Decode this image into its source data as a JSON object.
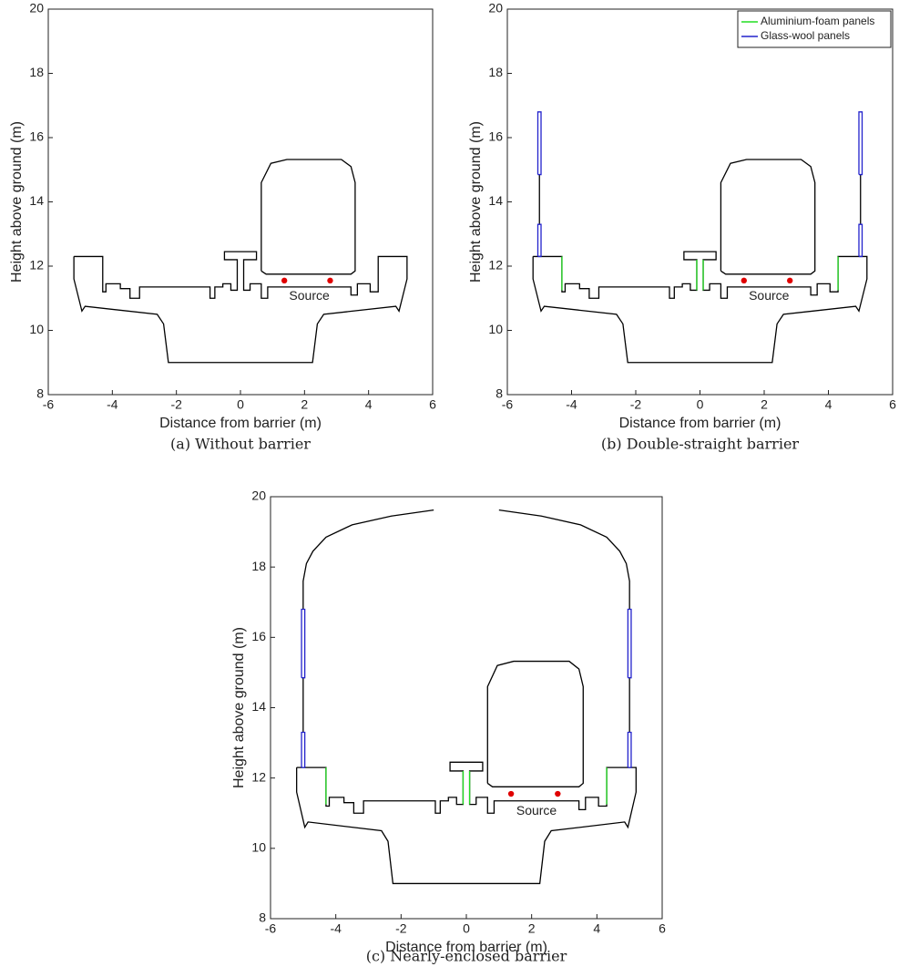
{
  "chart_data": [
    {
      "type": "line",
      "caption": "(a) Without barrier",
      "xlabel": "Distance from barrier (m)",
      "ylabel": "Height above ground (m)",
      "xlim": [
        -6,
        6
      ],
      "ylim": [
        8,
        20
      ],
      "xticks": [
        -6,
        -4,
        -2,
        0,
        2,
        4,
        6
      ],
      "yticks": [
        8,
        10,
        12,
        14,
        16,
        18,
        20
      ],
      "annotations": [
        {
          "text": "Source",
          "x": 2.15,
          "y": 11.05
        }
      ],
      "series": [
        {
          "color": "#000000",
          "x": [
            -5.2,
            -4.3,
            -4.3,
            -4.2,
            -4.2,
            -3.75,
            -3.75,
            -3.45,
            -3.45,
            -3.15,
            -3.15,
            -0.95,
            -0.95,
            -0.8,
            -0.8,
            -0.55,
            -0.55,
            -0.3,
            -0.3,
            -0.1,
            -0.1,
            -0.5,
            -0.5,
            0.5,
            0.5,
            0.1,
            0.1,
            0.3,
            0.3,
            0.65,
            0.65,
            0.85,
            0.85,
            3.45,
            3.45,
            3.65,
            3.65,
            4.05,
            4.05,
            4.3,
            4.3,
            5.2,
            5.2,
            4.95,
            4.85,
            2.6,
            2.4,
            2.25,
            -2.25,
            -2.4,
            -2.6,
            -4.85,
            -4.95,
            -5.2,
            -5.2
          ],
          "values": [
            12.3,
            12.3,
            11.2,
            11.2,
            11.45,
            11.45,
            11.3,
            11.3,
            11.0,
            11.0,
            11.35,
            11.35,
            11.0,
            11.0,
            11.35,
            11.35,
            11.45,
            11.45,
            11.25,
            11.25,
            12.2,
            12.2,
            12.45,
            12.45,
            12.2,
            12.2,
            11.25,
            11.25,
            11.45,
            11.45,
            11.0,
            11.0,
            11.35,
            11.35,
            11.1,
            11.1,
            11.45,
            11.45,
            11.2,
            11.2,
            12.3,
            12.3,
            11.6,
            10.6,
            10.75,
            10.5,
            10.2,
            9.0,
            9.0,
            10.2,
            10.5,
            10.75,
            10.6,
            11.6,
            12.3
          ]
        },
        {
          "color": "#000000",
          "x": [
            0.65,
            0.65,
            0.95,
            1.45,
            3.15,
            3.45,
            3.58,
            3.58,
            3.45,
            0.8,
            0.65
          ],
          "values": [
            11.85,
            14.6,
            15.2,
            15.32,
            15.32,
            15.1,
            14.6,
            11.85,
            11.75,
            11.75,
            11.85
          ]
        },
        {
          "color": "#e00000",
          "marker": "dot",
          "x": [
            1.37,
            2.8
          ],
          "values": [
            11.55,
            11.55
          ]
        }
      ]
    },
    {
      "type": "line",
      "caption": "(b) Double-straight barrier",
      "xlabel": "Distance from barrier (m)",
      "ylabel": "Height above ground (m)",
      "xlim": [
        -6,
        6
      ],
      "ylim": [
        8,
        20
      ],
      "xticks": [
        -6,
        -4,
        -2,
        0,
        2,
        4,
        6
      ],
      "yticks": [
        8,
        10,
        12,
        14,
        16,
        18,
        20
      ],
      "legend": "northeast",
      "annotations": [
        {
          "text": "Source",
          "x": 2.15,
          "y": 11.05
        }
      ],
      "series": [
        {
          "color": "#000000",
          "x": [
            -5.2,
            -4.3,
            -4.3,
            -4.2,
            -4.2,
            -3.75,
            -3.75,
            -3.45,
            -3.45,
            -3.15,
            -3.15,
            -0.95,
            -0.95,
            -0.8,
            -0.8,
            -0.55,
            -0.55,
            -0.3,
            -0.3,
            -0.1,
            -0.1,
            -0.5,
            -0.5,
            0.5,
            0.5,
            0.1,
            0.1,
            0.3,
            0.3,
            0.65,
            0.65,
            0.85,
            0.85,
            3.45,
            3.45,
            3.65,
            3.65,
            4.05,
            4.05,
            4.3,
            4.3,
            5.2,
            5.2,
            4.95,
            4.85,
            2.6,
            2.4,
            2.25,
            -2.25,
            -2.4,
            -2.6,
            -4.85,
            -4.95,
            -5.2,
            -5.2
          ],
          "values": [
            12.3,
            12.3,
            11.2,
            11.2,
            11.45,
            11.45,
            11.3,
            11.3,
            11.0,
            11.0,
            11.35,
            11.35,
            11.0,
            11.0,
            11.35,
            11.35,
            11.45,
            11.45,
            11.25,
            11.25,
            12.2,
            12.2,
            12.45,
            12.45,
            12.2,
            12.2,
            11.25,
            11.25,
            11.45,
            11.45,
            11.0,
            11.0,
            11.35,
            11.35,
            11.1,
            11.1,
            11.45,
            11.45,
            11.2,
            11.2,
            12.3,
            12.3,
            11.6,
            10.6,
            10.75,
            10.5,
            10.2,
            9.0,
            9.0,
            10.2,
            10.5,
            10.75,
            10.6,
            11.6,
            12.3
          ]
        },
        {
          "color": "#000000",
          "x": [
            0.65,
            0.65,
            0.95,
            1.45,
            3.15,
            3.45,
            3.58,
            3.58,
            3.45,
            0.8,
            0.65
          ],
          "values": [
            11.85,
            14.6,
            15.2,
            15.32,
            15.32,
            15.1,
            14.6,
            11.85,
            11.75,
            11.75,
            11.85
          ]
        },
        {
          "color": "#000000",
          "x": [
            -5.0,
            -5.0,
            null,
            5.0,
            5.0
          ],
          "values": [
            13.3,
            14.85,
            null,
            13.3,
            14.85
          ]
        },
        {
          "name": "Aluminium-foam panels",
          "color": "#22dd22",
          "x": [
            -4.3,
            -4.3,
            null,
            -0.1,
            -0.1,
            null,
            0.1,
            0.1,
            null,
            4.3,
            4.3
          ],
          "values": [
            11.25,
            12.3,
            null,
            11.25,
            12.2,
            null,
            11.25,
            12.2,
            null,
            11.25,
            12.3
          ]
        },
        {
          "name": "Glass-wool panels",
          "color": "#2222cc",
          "x": [
            -5.05,
            -5.05,
            -4.95,
            -4.95,
            -5.05,
            null,
            -5.05,
            -5.05,
            -4.95,
            -4.95,
            -5.05,
            null,
            4.95,
            4.95,
            5.05,
            5.05,
            4.95,
            null,
            4.95,
            4.95,
            5.05,
            5.05,
            4.95
          ],
          "values": [
            14.85,
            16.8,
            16.8,
            14.85,
            14.85,
            null,
            12.3,
            13.3,
            13.3,
            12.3,
            12.3,
            null,
            14.85,
            16.8,
            16.8,
            14.85,
            14.85,
            null,
            12.3,
            13.3,
            13.3,
            12.3,
            12.3
          ]
        },
        {
          "color": "#e00000",
          "marker": "dot",
          "x": [
            1.37,
            2.8
          ],
          "values": [
            11.55,
            11.55
          ]
        }
      ]
    },
    {
      "type": "line",
      "caption": "(c) Nearly-enclosed barrier",
      "xlabel": "Distance from barrier (m)",
      "ylabel": "Height above ground (m)",
      "xlim": [
        -6,
        6
      ],
      "ylim": [
        8,
        20
      ],
      "xticks": [
        -6,
        -4,
        -2,
        0,
        2,
        4,
        6
      ],
      "yticks": [
        8,
        10,
        12,
        14,
        16,
        18,
        20
      ],
      "annotations": [
        {
          "text": "Source",
          "x": 2.15,
          "y": 11.05
        }
      ],
      "series": [
        {
          "color": "#000000",
          "x": [
            -5.2,
            -4.3,
            -4.3,
            -4.2,
            -4.2,
            -3.75,
            -3.75,
            -3.45,
            -3.45,
            -3.15,
            -3.15,
            -0.95,
            -0.95,
            -0.8,
            -0.8,
            -0.55,
            -0.55,
            -0.3,
            -0.3,
            -0.1,
            -0.1,
            -0.5,
            -0.5,
            0.5,
            0.5,
            0.1,
            0.1,
            0.3,
            0.3,
            0.65,
            0.65,
            0.85,
            0.85,
            3.45,
            3.45,
            3.65,
            3.65,
            4.05,
            4.05,
            4.3,
            4.3,
            5.2,
            5.2,
            4.95,
            4.85,
            2.6,
            2.4,
            2.25,
            -2.25,
            -2.4,
            -2.6,
            -4.85,
            -4.95,
            -5.2,
            -5.2
          ],
          "values": [
            12.3,
            12.3,
            11.2,
            11.2,
            11.45,
            11.45,
            11.3,
            11.3,
            11.0,
            11.0,
            11.35,
            11.35,
            11.0,
            11.0,
            11.35,
            11.35,
            11.45,
            11.45,
            11.25,
            11.25,
            12.2,
            12.2,
            12.45,
            12.45,
            12.2,
            12.2,
            11.25,
            11.25,
            11.45,
            11.45,
            11.0,
            11.0,
            11.35,
            11.35,
            11.1,
            11.1,
            11.45,
            11.45,
            11.2,
            11.2,
            12.3,
            12.3,
            11.6,
            10.6,
            10.75,
            10.5,
            10.2,
            9.0,
            9.0,
            10.2,
            10.5,
            10.75,
            10.6,
            11.6,
            12.3
          ]
        },
        {
          "color": "#000000",
          "x": [
            0.65,
            0.65,
            0.95,
            1.45,
            3.15,
            3.45,
            3.58,
            3.58,
            3.45,
            0.8,
            0.65
          ],
          "values": [
            11.85,
            14.6,
            15.2,
            15.32,
            15.32,
            15.1,
            14.6,
            11.85,
            11.75,
            11.75,
            11.85
          ]
        },
        {
          "color": "#000000",
          "x": [
            -5.0,
            -5.0,
            null,
            5.0,
            5.0
          ],
          "values": [
            13.3,
            14.85,
            null,
            13.3,
            14.85
          ]
        },
        {
          "color": "#000000",
          "x": [
            -5.0,
            -5.0,
            -4.9,
            -4.7,
            -4.3,
            -3.5,
            -2.3,
            -1.0,
            null,
            1.0,
            2.3,
            3.5,
            4.3,
            4.7,
            4.9,
            5.0,
            5.0
          ],
          "values": [
            16.8,
            17.6,
            18.1,
            18.45,
            18.85,
            19.2,
            19.45,
            19.62,
            null,
            19.62,
            19.45,
            19.2,
            18.85,
            18.45,
            18.1,
            17.6,
            16.8
          ]
        },
        {
          "color": "#22dd22",
          "x": [
            -4.3,
            -4.3,
            null,
            -0.1,
            -0.1,
            null,
            0.1,
            0.1,
            null,
            4.3,
            4.3
          ],
          "values": [
            11.25,
            12.3,
            null,
            11.25,
            12.2,
            null,
            11.25,
            12.2,
            null,
            11.25,
            12.3
          ]
        },
        {
          "color": "#2222cc",
          "x": [
            -5.05,
            -5.05,
            -4.95,
            -4.95,
            -5.05,
            null,
            -5.05,
            -5.05,
            -4.95,
            -4.95,
            -5.05,
            null,
            4.95,
            4.95,
            5.05,
            5.05,
            4.95,
            null,
            4.95,
            4.95,
            5.05,
            5.05,
            4.95
          ],
          "values": [
            14.85,
            16.8,
            16.8,
            14.85,
            14.85,
            null,
            12.3,
            13.3,
            13.3,
            12.3,
            12.3,
            null,
            14.85,
            16.8,
            16.8,
            14.85,
            14.85,
            null,
            12.3,
            13.3,
            13.3,
            12.3,
            12.3
          ]
        },
        {
          "color": "#e00000",
          "marker": "dot",
          "x": [
            1.37,
            2.8
          ],
          "values": [
            11.55,
            11.55
          ]
        }
      ]
    }
  ]
}
